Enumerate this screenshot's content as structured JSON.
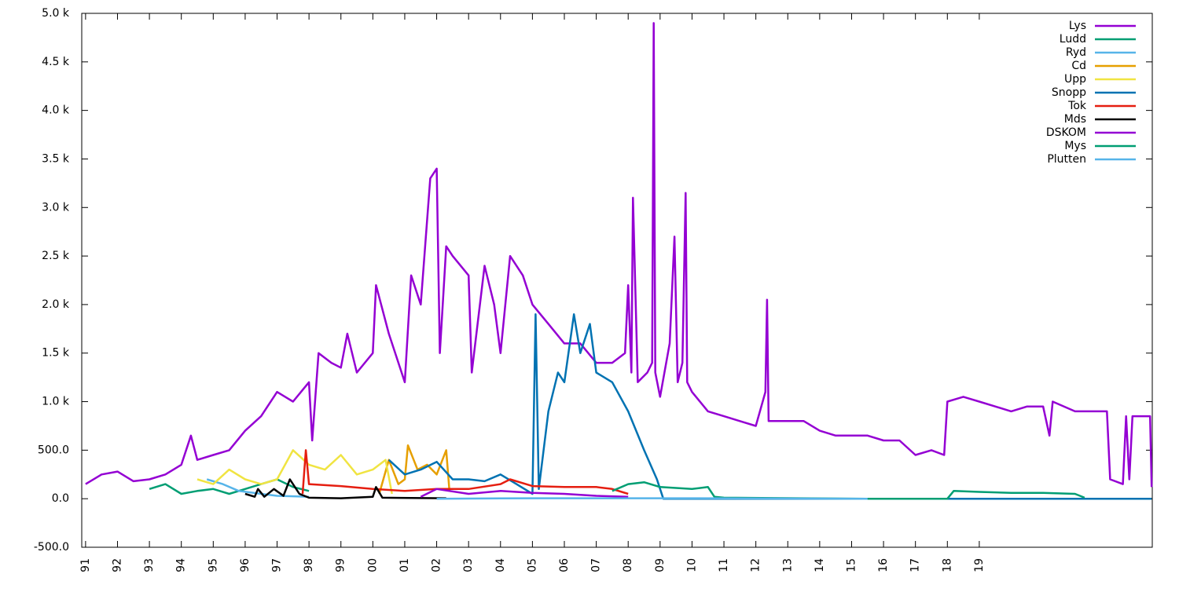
{
  "chart_data": {
    "type": "line",
    "xlim": [
      1990.88,
      2024.42
    ],
    "xticks": [
      {
        "value": 1991,
        "label": "91"
      },
      {
        "value": 1992,
        "label": "92"
      },
      {
        "value": 1993,
        "label": "93"
      },
      {
        "value": 1994,
        "label": "94"
      },
      {
        "value": 1995,
        "label": "95"
      },
      {
        "value": 1996,
        "label": "96"
      },
      {
        "value": 1997,
        "label": "97"
      },
      {
        "value": 1998,
        "label": "98"
      },
      {
        "value": 1999,
        "label": "99"
      },
      {
        "value": 2000,
        "label": "00"
      },
      {
        "value": 2001,
        "label": "01"
      },
      {
        "value": 2002,
        "label": "02"
      },
      {
        "value": 2003,
        "label": "03"
      },
      {
        "value": 2004,
        "label": "04"
      },
      {
        "value": 2005,
        "label": "05"
      },
      {
        "value": 2006,
        "label": "06"
      },
      {
        "value": 2007,
        "label": "07"
      },
      {
        "value": 2008,
        "label": "08"
      },
      {
        "value": 2009,
        "label": "09"
      },
      {
        "value": 2010,
        "label": "10"
      },
      {
        "value": 2011,
        "label": "11"
      },
      {
        "value": 2012,
        "label": "12"
      },
      {
        "value": 2013,
        "label": "13"
      },
      {
        "value": 2014,
        "label": "14"
      },
      {
        "value": 2015,
        "label": "15"
      },
      {
        "value": 2016,
        "label": "16"
      },
      {
        "value": 2017,
        "label": "17"
      },
      {
        "value": 2018,
        "label": "18"
      },
      {
        "value": 2019,
        "label": "19"
      }
    ],
    "ylim": [
      -500,
      5000
    ],
    "yticks": [
      {
        "value": -500,
        "label": "-500.0"
      },
      {
        "value": 0,
        "label": "0.0"
      },
      {
        "value": 500,
        "label": "500.0"
      },
      {
        "value": 1000,
        "label": "1.0 k"
      },
      {
        "value": 1500,
        "label": "1.5 k"
      },
      {
        "value": 2000,
        "label": "2.0 k"
      },
      {
        "value": 2500,
        "label": "2.5 k"
      },
      {
        "value": 3000,
        "label": "3.0 k"
      },
      {
        "value": 3500,
        "label": "3.5 k"
      },
      {
        "value": 4000,
        "label": "4.0 k"
      },
      {
        "value": 4500,
        "label": "4.5 k"
      },
      {
        "value": 5000,
        "label": "5.0 k"
      }
    ],
    "legend": "top right",
    "series": [
      {
        "name": "Lys",
        "color": "#9400d3",
        "x": [
          1991.0,
          1991.5,
          1992.0,
          1992.5,
          1993.0,
          1993.5,
          1994.0,
          1994.3,
          1994.5,
          1995.0,
          1995.5,
          1996.0,
          1996.5,
          1997.0,
          1997.5,
          1998.0,
          1998.1,
          1998.3,
          1998.7,
          1999.0,
          1999.2,
          1999.5,
          2000.0,
          2000.1,
          2000.5,
          2001.0,
          2001.2,
          2001.5,
          2001.8,
          2002.0,
          2002.1,
          2002.3,
          2002.5,
          2003.0,
          2003.1,
          2003.5,
          2003.8,
          2004.0,
          2004.3,
          2004.7,
          2005.0,
          2005.5,
          2006.0,
          2006.5,
          2007.0,
          2007.5,
          2007.9,
          2008.0,
          2008.1,
          2008.15,
          2008.3,
          2008.6,
          2008.75,
          2008.8,
          2008.85,
          2009.0,
          2009.3,
          2009.45,
          2009.55,
          2009.7,
          2009.8,
          2009.85,
          2010.0,
          2010.5,
          2011.0,
          2011.5,
          2012.0,
          2012.3,
          2012.35,
          2012.4,
          2013.0,
          2013.5,
          2014.0,
          2014.5,
          2015.0,
          2015.5,
          2016.0,
          2016.5,
          2017.0,
          2017.5,
          2017.9,
          2018.0,
          2018.5,
          2019.0,
          2019.5,
          2020.0,
          2020.5,
          2021.0,
          2021.2,
          2021.3,
          2022.0,
          2022.5,
          2023.0,
          2023.1,
          2023.5,
          2023.6,
          2023.7,
          2023.8,
          2024.0,
          2024.35,
          2024.4
        ],
        "values": [
          150,
          250,
          280,
          180,
          200,
          250,
          350,
          650,
          400,
          450,
          500,
          700,
          850,
          1100,
          1000,
          1200,
          600,
          1500,
          1400,
          1350,
          1700,
          1300,
          1500,
          2200,
          1700,
          1200,
          2300,
          2000,
          3300,
          3400,
          1500,
          2600,
          2500,
          2300,
          1300,
          2400,
          2000,
          1500,
          2500,
          2300,
          2000,
          1800,
          1600,
          1600,
          1400,
          1400,
          1500,
          2200,
          1300,
          3100,
          1200,
          1300,
          1400,
          4900,
          1300,
          1050,
          1600,
          2700,
          1200,
          1400,
          3150,
          1200,
          1100,
          900,
          850,
          800,
          750,
          1100,
          2050,
          800,
          800,
          800,
          700,
          650,
          650,
          650,
          600,
          600,
          450,
          500,
          450,
          1000,
          1050,
          1000,
          950,
          900,
          950,
          950,
          650,
          1000,
          900,
          900,
          900,
          200,
          150,
          850,
          200,
          850,
          850,
          850,
          120
        ]
      },
      {
        "name": "Ludd",
        "color": "#009e73",
        "x": [
          1993.0,
          1993.5,
          1994.0,
          1994.5,
          1995.0,
          1995.5,
          1996.0,
          1996.5,
          1997.0,
          1997.5,
          1998.0
        ],
        "values": [
          100,
          150,
          50,
          80,
          100,
          50,
          100,
          150,
          200,
          120,
          80
        ]
      },
      {
        "name": "Ryd",
        "color": "#56b4e9",
        "x": [
          1994.8,
          1995.3,
          1995.8,
          1996.5,
          1997.0,
          1998.0
        ],
        "values": [
          200,
          150,
          80,
          50,
          30,
          20
        ]
      },
      {
        "name": "Cd",
        "color": "#e69f00",
        "x": [
          2000.2,
          2000.5,
          2000.8,
          2001.0,
          2001.1,
          2001.4,
          2001.7,
          2002.0,
          2002.3,
          2002.4
        ],
        "values": [
          50,
          400,
          150,
          200,
          550,
          300,
          350,
          250,
          500,
          80
        ]
      },
      {
        "name": "Upp",
        "color": "#f0e442",
        "x": [
          1994.5,
          1995.0,
          1995.5,
          1996.0,
          1996.5,
          1997.0,
          1997.5,
          1998.0,
          1998.5,
          1999.0,
          1999.5,
          2000.0,
          2000.4,
          2000.6
        ],
        "values": [
          200,
          150,
          300,
          200,
          150,
          200,
          500,
          350,
          300,
          450,
          250,
          300,
          400,
          50
        ]
      },
      {
        "name": "Snopp",
        "color": "#0072b2",
        "x": [
          2000.5,
          2001.0,
          2001.5,
          2002.0,
          2002.5,
          2003.0,
          2003.5,
          2004.0,
          2004.5,
          2005.0,
          2005.1,
          2005.2,
          2005.5,
          2005.8,
          2006.0,
          2006.3,
          2006.5,
          2006.8,
          2007.0,
          2007.5,
          2008.0,
          2008.5,
          2008.9,
          2009.1,
          2024.4
        ],
        "values": [
          400,
          250,
          300,
          380,
          200,
          200,
          180,
          250,
          150,
          50,
          1900,
          100,
          900,
          1300,
          1200,
          1900,
          1500,
          1800,
          1300,
          1200,
          900,
          500,
          200,
          0,
          0
        ]
      },
      {
        "name": "Tok",
        "color": "#e51e10",
        "x": [
          1997.8,
          1997.9,
          1998.0,
          1999.0,
          2000.0,
          2001.0,
          2002.0,
          2003.0,
          2004.0,
          2004.3,
          2005.0,
          2006.0,
          2007.0,
          2007.5,
          2008.0
        ],
        "values": [
          50,
          500,
          150,
          130,
          100,
          80,
          100,
          100,
          150,
          200,
          130,
          120,
          120,
          100,
          50
        ]
      },
      {
        "name": "Mds",
        "color": "#000000",
        "x": [
          1996.0,
          1996.3,
          1996.4,
          1996.6,
          1996.9,
          1997.2,
          1997.4,
          1997.7,
          1998.0,
          1999.0,
          2000.0,
          2000.1,
          2000.3,
          2002.3
        ],
        "values": [
          50,
          20,
          100,
          20,
          100,
          30,
          200,
          50,
          10,
          5,
          20,
          120,
          10,
          5
        ]
      },
      {
        "name": "DSKOM",
        "color": "#9400d3",
        "x": [
          2001.5,
          2002.0,
          2003.0,
          2004.0,
          2005.0,
          2006.0,
          2007.0,
          2008.0
        ],
        "values": [
          20,
          100,
          50,
          80,
          60,
          50,
          30,
          20
        ]
      },
      {
        "name": "Mys",
        "color": "#009e73",
        "x": [
          2007.5,
          2008.0,
          2008.5,
          2009.0,
          2010.0,
          2010.5,
          2010.7,
          2011.0,
          2015.5,
          2018.0,
          2018.2,
          2019.0,
          2020.0,
          2021.0,
          2022.0,
          2022.3
        ],
        "values": [
          80,
          150,
          170,
          120,
          100,
          120,
          20,
          10,
          0,
          0,
          80,
          70,
          60,
          60,
          50,
          10
        ]
      },
      {
        "name": "Plutten",
        "color": "#56b4e9",
        "x": [
          2002.0,
          2005.0,
          2010.0,
          2015.5
        ],
        "values": [
          0,
          5,
          5,
          0
        ]
      }
    ]
  }
}
